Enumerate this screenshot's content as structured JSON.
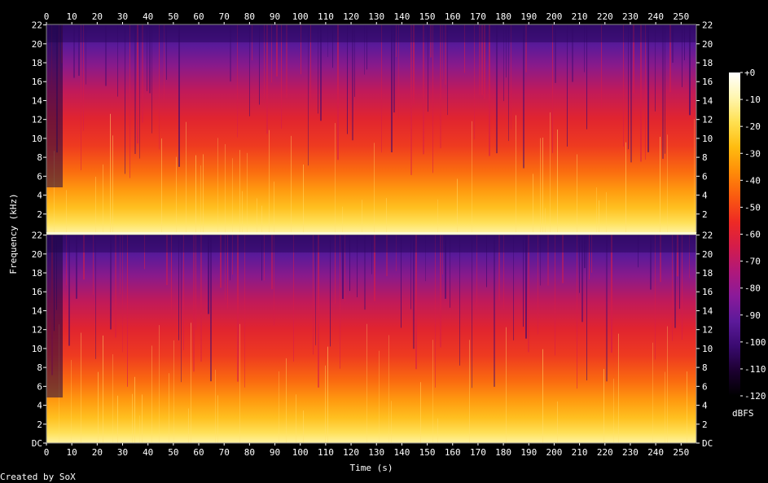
{
  "chart_data": {
    "type": "heatmap",
    "title": "",
    "xlabel": "Time (s)",
    "ylabel": "Frequency (kHz)",
    "x_ticks": [
      0,
      10,
      20,
      30,
      40,
      50,
      60,
      70,
      80,
      90,
      100,
      110,
      120,
      130,
      140,
      150,
      160,
      170,
      180,
      190,
      200,
      210,
      220,
      230,
      240,
      250
    ],
    "xlim": [
      0,
      256
    ],
    "channels": [
      {
        "y_ticks": [
          "22",
          "20",
          "18",
          "16",
          "14",
          "12",
          "10",
          "8",
          "6",
          "4",
          "2"
        ],
        "ylim_khz": [
          0,
          22.05
        ]
      },
      {
        "y_ticks": [
          "22",
          "20",
          "18",
          "16",
          "14",
          "12",
          "10",
          "8",
          "6",
          "4",
          "2",
          "DC"
        ],
        "ylim_khz": [
          0,
          22.05
        ]
      }
    ],
    "colorbar": {
      "label": "dBFS",
      "ticks": [
        "+0",
        "-10",
        "-20",
        "-30",
        "-40",
        "-50",
        "-60",
        "-70",
        "-80",
        "-90",
        "-100",
        "-110",
        "-120"
      ],
      "range_db": [
        -120,
        0
      ],
      "colors": [
        "#000000",
        "#1c0030",
        "#3a0a70",
        "#5c1a9a",
        "#8a1a9a",
        "#b0187a",
        "#d41c4a",
        "#ee2a24",
        "#fa5a10",
        "#ff8c08",
        "#ffbc10",
        "#ffe050",
        "#fff6b0",
        "#ffffff"
      ]
    }
  },
  "footer": {
    "credit": "Created by SoX"
  }
}
